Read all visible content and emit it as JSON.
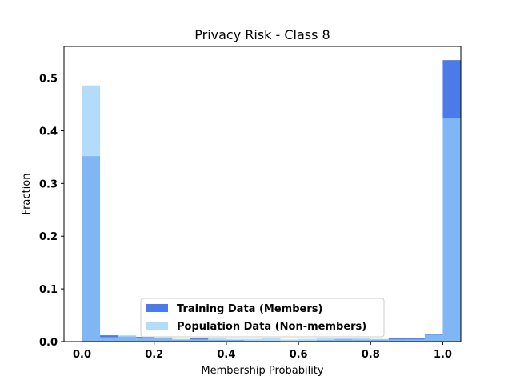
{
  "chart_data": {
    "type": "bar",
    "title": "Privacy Risk - Class 8",
    "xlabel": "Membership Probability",
    "ylabel": "Fraction",
    "xlim": [
      -0.05,
      1.05
    ],
    "ylim": [
      0,
      0.56
    ],
    "xticks": [
      "0.0",
      "0.2",
      "0.4",
      "0.6",
      "0.8",
      "1.0"
    ],
    "yticks": [
      "0.0",
      "0.1",
      "0.2",
      "0.3",
      "0.4",
      "0.5"
    ],
    "bin_edges": [
      0.0,
      0.05,
      0.1,
      0.15,
      0.2,
      0.25,
      0.3,
      0.35,
      0.4,
      0.45,
      0.5,
      0.55,
      0.6,
      0.65,
      0.7,
      0.75,
      0.8,
      0.85,
      0.9,
      0.95,
      1.0
    ],
    "series": [
      {
        "name": "Training Data (Members)",
        "color": "#4a7be8",
        "values": [
          0.352,
          0.012,
          0.01,
          0.009,
          0.006,
          0.004,
          0.006,
          0.003,
          0.003,
          0.002,
          0.002,
          0.001,
          0.002,
          0.003,
          0.005,
          0.004,
          0.004,
          0.006,
          0.006,
          0.015,
          0.534
        ]
      },
      {
        "name": "Population Data (Non-members)",
        "color": "#b3dcfa",
        "values": [
          0.486,
          0.008,
          0.012,
          0.006,
          0.008,
          0.005,
          0.004,
          0.006,
          0.005,
          0.005,
          0.006,
          0.004,
          0.005,
          0.006,
          0.006,
          0.006,
          0.005,
          0.004,
          0.004,
          0.013,
          0.423
        ]
      }
    ],
    "overlap_color": "#80b6f4",
    "legend_position": "lower-center",
    "grid": false
  }
}
